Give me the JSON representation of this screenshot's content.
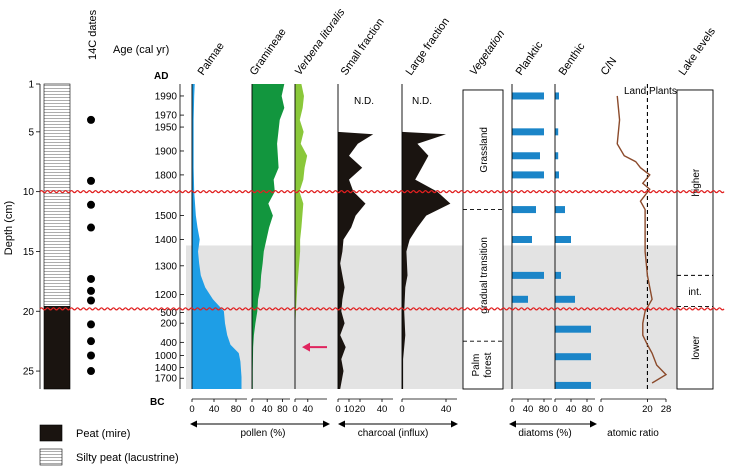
{
  "chart_data": {
    "type": "area",
    "title": "",
    "depth_axis": {
      "label": "Depth (cm)",
      "ticks": [
        "1",
        "5",
        "10",
        "15",
        "20",
        "25"
      ],
      "range": [
        1,
        26.5
      ]
    },
    "age_axis": {
      "label": "Age (cal yr)",
      "top_label": "AD",
      "bottom_label": "BC",
      "ticks": [
        {
          "label": "1990",
          "depth": 2.0
        },
        {
          "label": "1970",
          "depth": 3.6
        },
        {
          "label": "1950",
          "depth": 4.6
        },
        {
          "label": "1900",
          "depth": 6.6
        },
        {
          "label": "1800",
          "depth": 8.6
        },
        {
          "label": "1500",
          "depth": 12.0
        },
        {
          "label": "1400",
          "depth": 14.0
        },
        {
          "label": "1300",
          "depth": 16.2
        },
        {
          "label": "1200",
          "depth": 18.6
        },
        {
          "label": "500",
          "depth": 20.1
        },
        {
          "label": "200",
          "depth": 21.0
        },
        {
          "label": "400",
          "depth": 22.6
        },
        {
          "label": "1000",
          "depth": 23.7
        },
        {
          "label": "1400",
          "depth": 24.7
        },
        {
          "label": "1700",
          "depth": 25.6
        }
      ]
    },
    "dates_14C": {
      "label": "14C dates",
      "depths": [
        4.0,
        9.1,
        11.1,
        13.0,
        17.3,
        18.3,
        19.1,
        21.1,
        22.5,
        23.7,
        25.0
      ]
    },
    "lithology": [
      {
        "label": "Silty peat (lacustrine)",
        "from": 1,
        "to": 19.6
      },
      {
        "label": "Peat (mire)",
        "from": 19.6,
        "to": 26.5
      }
    ],
    "shaded_zone": {
      "from": 14.5,
      "to": 26.5
    },
    "hiatus_lines": [
      10.0,
      19.8
    ],
    "pollen_unit": "pollen (%)",
    "charcoal_unit": "charcoal (influx)",
    "diatom_unit": "diatoms (%)",
    "cn_unit": "atomic ratio",
    "series": [
      {
        "name": "Palmae",
        "group": "pollen",
        "color": "#1e9ee6",
        "xlim": [
          0,
          100
        ],
        "ticks": [
          "0",
          "40",
          "80"
        ],
        "points": [
          [
            1,
            5
          ],
          [
            2,
            4
          ],
          [
            4,
            3
          ],
          [
            6,
            3
          ],
          [
            8,
            3
          ],
          [
            10,
            4
          ],
          [
            12,
            7
          ],
          [
            13,
            10
          ],
          [
            14,
            14
          ],
          [
            15,
            11
          ],
          [
            16,
            13
          ],
          [
            17,
            16
          ],
          [
            18,
            24
          ],
          [
            19,
            38
          ],
          [
            20,
            58
          ],
          [
            21,
            60
          ],
          [
            22,
            64
          ],
          [
            22.8,
            70
          ],
          [
            23.5,
            85
          ],
          [
            24.2,
            88
          ],
          [
            25.5,
            90
          ],
          [
            26.5,
            90
          ]
        ]
      },
      {
        "name": "Gramineae",
        "group": "pollen",
        "color": "#12963e",
        "xlim": [
          0,
          100
        ],
        "ticks": [
          "0",
          "40",
          "80"
        ],
        "points": [
          [
            1,
            85
          ],
          [
            2,
            78
          ],
          [
            3,
            85
          ],
          [
            4,
            73
          ],
          [
            6,
            66
          ],
          [
            8,
            70
          ],
          [
            9,
            57
          ],
          [
            10,
            60
          ],
          [
            11,
            43
          ],
          [
            12,
            55
          ],
          [
            13,
            45
          ],
          [
            14,
            38
          ],
          [
            15,
            31
          ],
          [
            16,
            28
          ],
          [
            17,
            24
          ],
          [
            18,
            22
          ],
          [
            19,
            16
          ],
          [
            20,
            14
          ],
          [
            21,
            9
          ],
          [
            22,
            5
          ],
          [
            23,
            3
          ],
          [
            25,
            2
          ],
          [
            26.5,
            2
          ]
        ]
      },
      {
        "name": "Verbena litoralis",
        "group": "pollen",
        "color": "#8ac83a",
        "xlim": [
          0,
          100
        ],
        "ticks": [
          "0",
          "40"
        ],
        "points": [
          [
            1,
            20
          ],
          [
            2,
            28
          ],
          [
            3,
            24
          ],
          [
            4,
            15
          ],
          [
            5,
            27
          ],
          [
            6,
            18
          ],
          [
            7,
            38
          ],
          [
            8,
            30
          ],
          [
            9,
            26
          ],
          [
            10,
            14
          ],
          [
            11,
            26
          ],
          [
            12,
            23
          ],
          [
            13,
            20
          ],
          [
            14,
            16
          ],
          [
            15,
            16
          ],
          [
            16,
            13
          ],
          [
            17,
            10
          ],
          [
            18,
            7
          ],
          [
            19,
            5
          ],
          [
            20,
            3
          ],
          [
            21,
            1
          ],
          [
            22,
            0
          ],
          [
            26.5,
            0
          ]
        ]
      },
      {
        "name": "Small fraction",
        "group": "charcoal",
        "color": "#1a1410",
        "xlim": [
          0,
          50
        ],
        "ticks": [
          "0",
          "10",
          "20",
          "40"
        ],
        "annotation": "N.D.",
        "points": [
          [
            5,
            0
          ],
          [
            5.2,
            32
          ],
          [
            6,
            18
          ],
          [
            7,
            10
          ],
          [
            8,
            22
          ],
          [
            9,
            10
          ],
          [
            10,
            14
          ],
          [
            11,
            25
          ],
          [
            12,
            16
          ],
          [
            13,
            12
          ],
          [
            14,
            5
          ],
          [
            15,
            4
          ],
          [
            16,
            2
          ],
          [
            18,
            6
          ],
          [
            19,
            4
          ],
          [
            20,
            3
          ],
          [
            21,
            6
          ],
          [
            22,
            2
          ],
          [
            23,
            7
          ],
          [
            24,
            3
          ],
          [
            25,
            5
          ],
          [
            26.5,
            2
          ]
        ]
      },
      {
        "name": "Large fraction",
        "group": "charcoal",
        "color": "#1a1410",
        "xlim": [
          0,
          50
        ],
        "ticks": [
          "0",
          "40"
        ],
        "annotation": "N.D.",
        "points": [
          [
            5,
            0
          ],
          [
            5.2,
            40
          ],
          [
            6,
            14
          ],
          [
            7,
            24
          ],
          [
            8,
            18
          ],
          [
            9,
            12
          ],
          [
            10,
            32
          ],
          [
            11,
            44
          ],
          [
            12,
            22
          ],
          [
            13,
            14
          ],
          [
            14,
            7
          ],
          [
            15,
            4
          ],
          [
            17,
            5
          ],
          [
            18,
            3
          ],
          [
            20,
            2
          ],
          [
            22,
            3
          ],
          [
            23,
            2
          ],
          [
            24,
            1
          ],
          [
            26.5,
            1
          ]
        ]
      },
      {
        "name": "Planktic",
        "group": "diatoms",
        "color": "#1b85c8",
        "xlim": [
          0,
          100
        ],
        "ticks": [
          "0",
          "40",
          "80"
        ],
        "bars": [
          [
            2.0,
            80
          ],
          [
            5.0,
            80
          ],
          [
            7.0,
            70
          ],
          [
            8.6,
            80
          ],
          [
            11.5,
            60
          ],
          [
            14.0,
            50
          ],
          [
            17.0,
            80
          ],
          [
            19.0,
            40
          ]
        ]
      },
      {
        "name": "Benthic",
        "group": "diatoms",
        "color": "#1b85c8",
        "xlim": [
          0,
          100
        ],
        "ticks": [
          "0",
          "40",
          "80"
        ],
        "bars": [
          [
            2.0,
            10
          ],
          [
            5.0,
            8
          ],
          [
            7.0,
            8
          ],
          [
            8.6,
            10
          ],
          [
            11.5,
            25
          ],
          [
            14.0,
            40
          ],
          [
            17.0,
            15
          ],
          [
            19.0,
            50
          ],
          [
            21.5,
            90
          ],
          [
            23.8,
            90
          ],
          [
            26.2,
            90
          ]
        ]
      },
      {
        "name": "C/N",
        "group": "cn",
        "color": "#8b4a2b",
        "xlim": [
          0,
          28
        ],
        "ticks": [
          "0",
          "20",
          "28"
        ],
        "reference_line": 20,
        "reference_label": "Land Plants",
        "points": [
          [
            2,
            7
          ],
          [
            4,
            8
          ],
          [
            6,
            7
          ],
          [
            7,
            10
          ],
          [
            7.5,
            15
          ],
          [
            8,
            17
          ],
          [
            8.6,
            21
          ],
          [
            9.3,
            18
          ],
          [
            9.8,
            21
          ],
          [
            10.8,
            17
          ],
          [
            11.5,
            19
          ],
          [
            13,
            19
          ],
          [
            15,
            19
          ],
          [
            17,
            20
          ],
          [
            18,
            21
          ],
          [
            19,
            22
          ],
          [
            20,
            19
          ],
          [
            21,
            18
          ],
          [
            22,
            18
          ],
          [
            22.8,
            20
          ],
          [
            23.5,
            22
          ],
          [
            24.5,
            24
          ],
          [
            25.3,
            28
          ],
          [
            26,
            22
          ]
        ]
      }
    ],
    "vegetation": [
      {
        "label": "Grassland",
        "from": 1.5,
        "to": 11.5
      },
      {
        "label": "gradual transition",
        "from": 11.5,
        "to": 22.5
      },
      {
        "label": "Palm forest",
        "from": 22.5,
        "to": 26.5
      }
    ],
    "vegetation_title": "Vegetation",
    "lake_levels": {
      "title": "Lake levels",
      "zones": [
        {
          "label": "higher",
          "from": 1.5,
          "to": 17.0
        },
        {
          "label": "int.",
          "from": 17.0,
          "to": 19.6
        },
        {
          "label": "lower",
          "from": 19.6,
          "to": 26.5
        }
      ]
    },
    "legend": [
      {
        "label": "Peat (mire)",
        "swatch": "peat"
      },
      {
        "label": "Silty peat (lacustrine)",
        "swatch": "silty"
      }
    ],
    "colors": {
      "palmae": "#1e9ee6",
      "gramineae": "#12963e",
      "verbena": "#8ac83a",
      "charcoal": "#1a1410",
      "diatom": "#1b85c8",
      "cn": "#8b4a2b",
      "hiatus": "#e02020",
      "shade": "#e3e3e3",
      "arrow": "#e0245e"
    }
  }
}
